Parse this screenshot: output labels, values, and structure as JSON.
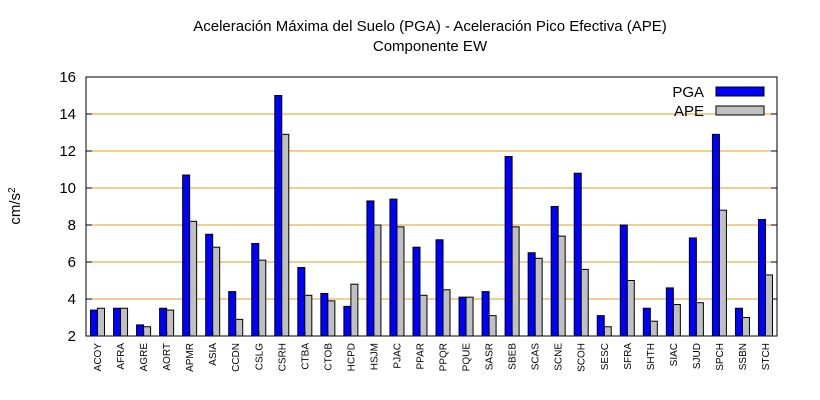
{
  "chart_data": {
    "type": "bar",
    "title": "Aceleración Máxima del Suelo (PGA) -  Aceleración Pico Efectiva (APE)",
    "subtitle": "Componente EW",
    "xlabel": "",
    "ylabel": "cm/s",
    "ylabel_exponent": "2",
    "ylim": [
      2,
      16
    ],
    "yticks": [
      2,
      4,
      6,
      8,
      10,
      12,
      14,
      16
    ],
    "grid": true,
    "legend_position": "top-right",
    "categories": [
      "ACOY",
      "AFRA",
      "AGRE",
      "AORT",
      "APMR",
      "ASIA",
      "CCDN",
      "CSLG",
      "CSRH",
      "CTBA",
      "CTOB",
      "HCPD",
      "HSJM",
      "PJAC",
      "PPAR",
      "PPQR",
      "PQUE",
      "SASR",
      "SBEB",
      "SCAS",
      "SCNE",
      "SCOH",
      "SESC",
      "SFRA",
      "SHTH",
      "SIAC",
      "SJUD",
      "SPCH",
      "SSBN",
      "STCH"
    ],
    "series": [
      {
        "name": "PGA",
        "color": "#0000ff",
        "values": [
          3.4,
          3.5,
          2.6,
          3.5,
          10.7,
          7.5,
          4.4,
          7.0,
          15.0,
          5.7,
          4.3,
          3.6,
          9.3,
          9.4,
          6.8,
          7.2,
          4.1,
          4.4,
          11.7,
          6.5,
          9.0,
          10.8,
          3.1,
          8.0,
          3.5,
          4.6,
          7.3,
          12.9,
          3.5,
          8.3
        ]
      },
      {
        "name": "APE",
        "color": "#c0c0c0",
        "values": [
          3.5,
          3.5,
          2.5,
          3.4,
          8.2,
          6.8,
          2.9,
          6.1,
          12.9,
          4.2,
          3.9,
          4.8,
          8.0,
          7.9,
          4.2,
          4.5,
          4.1,
          3.1,
          7.9,
          6.2,
          7.4,
          5.6,
          2.5,
          5.0,
          2.8,
          3.7,
          3.8,
          8.8,
          3.0,
          5.3
        ]
      }
    ]
  }
}
